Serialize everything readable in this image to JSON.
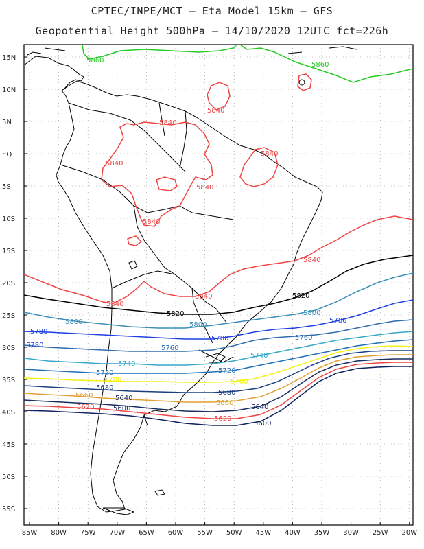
{
  "title_line1": "CPTEC/INPE/MCT –  Eta Model 15km – GFS",
  "title_line2": "Geopotential Height 500hPa – 14/10/2020 12UTC fct=226h",
  "lat_labels": [
    "15N",
    "10N",
    "5N",
    "EQ",
    "5S",
    "10S",
    "15S",
    "20S",
    "25S",
    "30S",
    "35S",
    "40S",
    "45S",
    "50S",
    "55S"
  ],
  "lon_labels": [
    "85W",
    "80W",
    "75W",
    "70W",
    "65W",
    "60W",
    "55W",
    "50W",
    "45W",
    "40W",
    "35W",
    "30W",
    "25W",
    "20W"
  ],
  "contour_colors": {
    "5860": "#22cc22",
    "5840": "#ee4444",
    "5820": "#000000",
    "5800": "#3a8fb8",
    "5780": "#1f40e0",
    "5760": "#2f6db0",
    "5740": "#36a7c9",
    "5720": "#1f6fb8",
    "5700": "#f2f21a",
    "5680": "#1a3f80",
    "5660": "#e3a030",
    "5640": "#182c60",
    "5620": "#ee4444",
    "5600": "#102060"
  },
  "contour_labels": [
    {
      "text": "5860",
      "color": "#22cc22"
    },
    {
      "text": "5860",
      "color": "#22cc22"
    },
    {
      "text": "5840",
      "color": "#ee4444"
    },
    {
      "text": "5840",
      "color": "#ee4444"
    },
    {
      "text": "5840",
      "color": "#ee4444"
    },
    {
      "text": "5840",
      "color": "#ee4444"
    },
    {
      "text": "5840",
      "color": "#ee4444"
    },
    {
      "text": "5840",
      "color": "#ee4444"
    },
    {
      "text": "5840",
      "color": "#ee4444"
    },
    {
      "text": "5840",
      "color": "#ee4444"
    },
    {
      "text": "5840",
      "color": "#ee4444"
    },
    {
      "text": "5820",
      "color": "#000000"
    },
    {
      "text": "5820",
      "color": "#000000"
    },
    {
      "text": "5800",
      "color": "#3a8fb8"
    },
    {
      "text": "5800",
      "color": "#3a8fb8"
    },
    {
      "text": "5800",
      "color": "#3a8fb8"
    },
    {
      "text": "5780",
      "color": "#1f40e0"
    },
    {
      "text": "5780",
      "color": "#1f40e0"
    },
    {
      "text": "5780",
      "color": "#1f40e0"
    },
    {
      "text": "5780",
      "color": "#1f40e0"
    },
    {
      "text": "5760",
      "color": "#2f6db0"
    },
    {
      "text": "5760",
      "color": "#2f6db0"
    },
    {
      "text": "5740",
      "color": "#36a7c9"
    },
    {
      "text": "5740",
      "color": "#36a7c9"
    },
    {
      "text": "5720",
      "color": "#1f6fb8"
    },
    {
      "text": "5720",
      "color": "#1f6fb8"
    },
    {
      "text": "5700",
      "color": "#f2f21a"
    },
    {
      "text": "5700",
      "color": "#f2f21a"
    },
    {
      "text": "5680",
      "color": "#1a3f80"
    },
    {
      "text": "5680",
      "color": "#1a3f80"
    },
    {
      "text": "5660",
      "color": "#e3a030"
    },
    {
      "text": "5660",
      "color": "#e3a030"
    },
    {
      "text": "5640",
      "color": "#182c60"
    },
    {
      "text": "5640",
      "color": "#182c60"
    },
    {
      "text": "5620",
      "color": "#ee4444"
    },
    {
      "text": "5620",
      "color": "#ee4444"
    },
    {
      "text": "5600",
      "color": "#102060"
    },
    {
      "text": "5600",
      "color": "#102060"
    }
  ]
}
